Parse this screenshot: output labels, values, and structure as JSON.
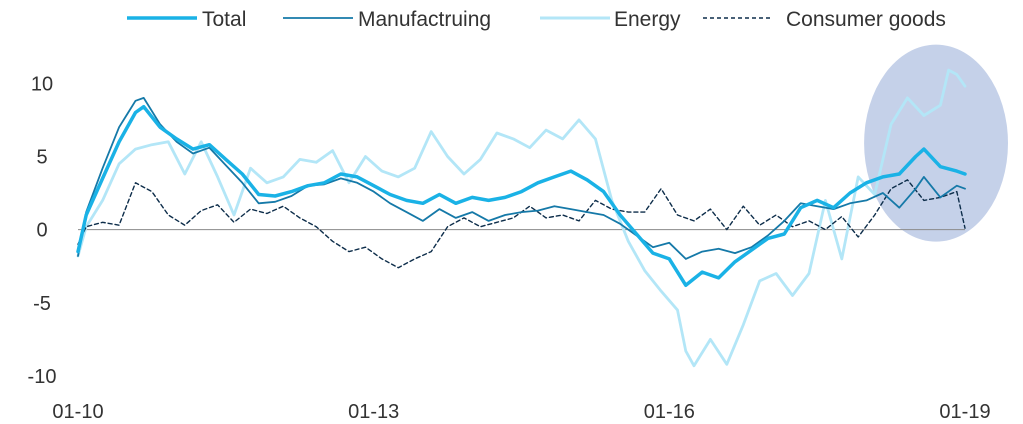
{
  "chart_data": {
    "type": "line",
    "title": "",
    "xlabel": "",
    "ylabel": "",
    "x_ticks": [
      "01-10",
      "01-13",
      "01-16",
      "01-19"
    ],
    "x_range": [
      "2010-01",
      "2019-01"
    ],
    "ylim": [
      -10,
      12
    ],
    "y_ticks": [
      10,
      5,
      0,
      -5,
      -10
    ],
    "y_tick_labels": [
      "10",
      "5",
      "0",
      "-5",
      "-10"
    ],
    "grid": false,
    "zero_line": true,
    "legend_position": "top",
    "highlight": {
      "shape": "ellipse",
      "x_range": [
        "2018-04",
        "2019-01"
      ],
      "y_range": [
        0,
        11
      ],
      "color": "#9fb3da"
    },
    "series": [
      {
        "name": "Total",
        "color": "#1ab2e6",
        "style": "bold",
        "points": [
          [
            "2010-01",
            -1.5
          ],
          [
            "2010-02",
            1.0
          ],
          [
            "2010-04",
            3.5
          ],
          [
            "2010-06",
            6.0
          ],
          [
            "2010-08",
            8.0
          ],
          [
            "2010-09",
            8.4
          ],
          [
            "2010-11",
            7.0
          ],
          [
            "2011-01",
            6.2
          ],
          [
            "2011-03",
            5.5
          ],
          [
            "2011-05",
            5.8
          ],
          [
            "2011-07",
            4.8
          ],
          [
            "2011-09",
            3.8
          ],
          [
            "2011-11",
            2.4
          ],
          [
            "2012-01",
            2.3
          ],
          [
            "2012-03",
            2.6
          ],
          [
            "2012-05",
            3.0
          ],
          [
            "2012-07",
            3.2
          ],
          [
            "2012-09",
            3.8
          ],
          [
            "2012-11",
            3.6
          ],
          [
            "2013-01",
            3.0
          ],
          [
            "2013-03",
            2.4
          ],
          [
            "2013-05",
            2.0
          ],
          [
            "2013-07",
            1.8
          ],
          [
            "2013-09",
            2.4
          ],
          [
            "2013-11",
            1.8
          ],
          [
            "2014-01",
            2.2
          ],
          [
            "2014-03",
            2.0
          ],
          [
            "2014-05",
            2.2
          ],
          [
            "2014-07",
            2.6
          ],
          [
            "2014-09",
            3.2
          ],
          [
            "2014-11",
            3.6
          ],
          [
            "2015-01",
            4.0
          ],
          [
            "2015-03",
            3.4
          ],
          [
            "2015-05",
            2.6
          ],
          [
            "2015-07",
            1.0
          ],
          [
            "2015-09",
            -0.3
          ],
          [
            "2015-11",
            -1.6
          ],
          [
            "2016-01",
            -2.0
          ],
          [
            "2016-03",
            -3.8
          ],
          [
            "2016-05",
            -2.9
          ],
          [
            "2016-07",
            -3.3
          ],
          [
            "2016-09",
            -2.2
          ],
          [
            "2016-11",
            -1.4
          ],
          [
            "2017-01",
            -0.6
          ],
          [
            "2017-03",
            -0.3
          ],
          [
            "2017-05",
            1.5
          ],
          [
            "2017-07",
            2.0
          ],
          [
            "2017-09",
            1.5
          ],
          [
            "2017-11",
            2.5
          ],
          [
            "2018-01",
            3.2
          ],
          [
            "2018-03",
            3.6
          ],
          [
            "2018-05",
            3.8
          ],
          [
            "2018-07",
            5.0
          ],
          [
            "2018-08",
            5.5
          ],
          [
            "2018-10",
            4.3
          ],
          [
            "2018-12",
            4.0
          ],
          [
            "2019-01",
            3.8
          ]
        ]
      },
      {
        "name": "Manufactruing",
        "color": "#1579a8",
        "style": "solid",
        "points": [
          [
            "2010-01",
            -1.8
          ],
          [
            "2010-02",
            1.2
          ],
          [
            "2010-04",
            4.2
          ],
          [
            "2010-06",
            7.0
          ],
          [
            "2010-08",
            8.8
          ],
          [
            "2010-09",
            9.0
          ],
          [
            "2010-11",
            7.2
          ],
          [
            "2011-01",
            6.0
          ],
          [
            "2011-03",
            5.2
          ],
          [
            "2011-05",
            5.6
          ],
          [
            "2011-07",
            4.4
          ],
          [
            "2011-09",
            3.2
          ],
          [
            "2011-11",
            1.8
          ],
          [
            "2012-01",
            1.9
          ],
          [
            "2012-03",
            2.3
          ],
          [
            "2012-05",
            3.0
          ],
          [
            "2012-07",
            3.1
          ],
          [
            "2012-09",
            3.5
          ],
          [
            "2012-11",
            3.2
          ],
          [
            "2013-01",
            2.6
          ],
          [
            "2013-03",
            1.8
          ],
          [
            "2013-05",
            1.2
          ],
          [
            "2013-07",
            0.6
          ],
          [
            "2013-09",
            1.4
          ],
          [
            "2013-11",
            0.8
          ],
          [
            "2014-01",
            1.2
          ],
          [
            "2014-03",
            0.6
          ],
          [
            "2014-05",
            1.0
          ],
          [
            "2014-07",
            1.2
          ],
          [
            "2014-09",
            1.3
          ],
          [
            "2014-11",
            1.6
          ],
          [
            "2015-01",
            1.4
          ],
          [
            "2015-03",
            1.2
          ],
          [
            "2015-05",
            1.0
          ],
          [
            "2015-07",
            0.4
          ],
          [
            "2015-09",
            -0.4
          ],
          [
            "2015-11",
            -1.2
          ],
          [
            "2016-01",
            -0.9
          ],
          [
            "2016-03",
            -2.0
          ],
          [
            "2016-05",
            -1.5
          ],
          [
            "2016-07",
            -1.3
          ],
          [
            "2016-09",
            -1.6
          ],
          [
            "2016-11",
            -1.2
          ],
          [
            "2017-01",
            -0.4
          ],
          [
            "2017-03",
            0.6
          ],
          [
            "2017-05",
            1.8
          ],
          [
            "2017-07",
            1.6
          ],
          [
            "2017-09",
            1.4
          ],
          [
            "2017-11",
            1.8
          ],
          [
            "2018-01",
            2.0
          ],
          [
            "2018-03",
            2.5
          ],
          [
            "2018-05",
            1.5
          ],
          [
            "2018-07",
            2.8
          ],
          [
            "2018-08",
            3.6
          ],
          [
            "2018-10",
            2.2
          ],
          [
            "2018-12",
            3.0
          ],
          [
            "2019-01",
            2.8
          ]
        ]
      },
      {
        "name": "Energy",
        "color": "#b3e6f7",
        "style": "solid",
        "points": [
          [
            "2010-01",
            -1.8
          ],
          [
            "2010-02",
            0.2
          ],
          [
            "2010-04",
            2.0
          ],
          [
            "2010-06",
            4.5
          ],
          [
            "2010-08",
            5.5
          ],
          [
            "2010-10",
            5.8
          ],
          [
            "2010-12",
            6.0
          ],
          [
            "2011-02",
            3.8
          ],
          [
            "2011-04",
            6.0
          ],
          [
            "2011-06",
            3.6
          ],
          [
            "2011-08",
            1.0
          ],
          [
            "2011-10",
            4.2
          ],
          [
            "2011-12",
            3.2
          ],
          [
            "2012-02",
            3.6
          ],
          [
            "2012-04",
            4.8
          ],
          [
            "2012-06",
            4.6
          ],
          [
            "2012-08",
            5.4
          ],
          [
            "2012-10",
            3.2
          ],
          [
            "2012-12",
            5.0
          ],
          [
            "2013-02",
            4.0
          ],
          [
            "2013-04",
            3.6
          ],
          [
            "2013-06",
            4.2
          ],
          [
            "2013-08",
            6.7
          ],
          [
            "2013-10",
            5.0
          ],
          [
            "2013-12",
            3.8
          ],
          [
            "2014-02",
            4.8
          ],
          [
            "2014-04",
            6.6
          ],
          [
            "2014-06",
            6.2
          ],
          [
            "2014-08",
            5.6
          ],
          [
            "2014-10",
            6.8
          ],
          [
            "2014-12",
            6.2
          ],
          [
            "2015-02",
            7.5
          ],
          [
            "2015-04",
            6.2
          ],
          [
            "2015-06",
            2.0
          ],
          [
            "2015-08",
            -0.8
          ],
          [
            "2015-10",
            -2.8
          ],
          [
            "2015-12",
            -4.2
          ],
          [
            "2016-02",
            -5.5
          ],
          [
            "2016-03",
            -8.3
          ],
          [
            "2016-04",
            -9.3
          ],
          [
            "2016-06",
            -7.5
          ],
          [
            "2016-08",
            -9.2
          ],
          [
            "2016-10",
            -6.5
          ],
          [
            "2016-12",
            -3.5
          ],
          [
            "2017-02",
            -3.0
          ],
          [
            "2017-04",
            -4.5
          ],
          [
            "2017-06",
            -3.0
          ],
          [
            "2017-08",
            2.0
          ],
          [
            "2017-10",
            -2.0
          ],
          [
            "2017-12",
            3.6
          ],
          [
            "2018-02",
            2.4
          ],
          [
            "2018-04",
            7.2
          ],
          [
            "2018-06",
            9.0
          ],
          [
            "2018-08",
            7.8
          ],
          [
            "2018-10",
            8.5
          ],
          [
            "2018-11",
            10.9
          ],
          [
            "2018-12",
            10.6
          ],
          [
            "2019-01",
            9.8
          ]
        ]
      },
      {
        "name": "Consumer goods",
        "color": "#0d2d4a",
        "style": "dashed",
        "points": [
          [
            "2010-01",
            -1.0
          ],
          [
            "2010-02",
            0.2
          ],
          [
            "2010-04",
            0.5
          ],
          [
            "2010-06",
            0.3
          ],
          [
            "2010-08",
            3.2
          ],
          [
            "2010-10",
            2.6
          ],
          [
            "2010-12",
            1.0
          ],
          [
            "2011-02",
            0.3
          ],
          [
            "2011-04",
            1.3
          ],
          [
            "2011-06",
            1.7
          ],
          [
            "2011-08",
            0.5
          ],
          [
            "2011-10",
            1.4
          ],
          [
            "2011-12",
            1.1
          ],
          [
            "2012-02",
            1.6
          ],
          [
            "2012-04",
            0.8
          ],
          [
            "2012-06",
            0.2
          ],
          [
            "2012-08",
            -0.8
          ],
          [
            "2012-10",
            -1.5
          ],
          [
            "2012-12",
            -1.2
          ],
          [
            "2013-02",
            -2.0
          ],
          [
            "2013-04",
            -2.6
          ],
          [
            "2013-06",
            -2.0
          ],
          [
            "2013-08",
            -1.5
          ],
          [
            "2013-10",
            0.2
          ],
          [
            "2013-12",
            0.8
          ],
          [
            "2014-02",
            0.2
          ],
          [
            "2014-04",
            0.5
          ],
          [
            "2014-06",
            0.8
          ],
          [
            "2014-08",
            1.6
          ],
          [
            "2014-10",
            0.8
          ],
          [
            "2014-12",
            1.0
          ],
          [
            "2015-02",
            0.6
          ],
          [
            "2015-04",
            2.0
          ],
          [
            "2015-06",
            1.4
          ],
          [
            "2015-08",
            1.2
          ],
          [
            "2015-10",
            1.2
          ],
          [
            "2015-12",
            2.8
          ],
          [
            "2016-02",
            1.0
          ],
          [
            "2016-04",
            0.6
          ],
          [
            "2016-06",
            1.4
          ],
          [
            "2016-08",
            0.0
          ],
          [
            "2016-10",
            1.6
          ],
          [
            "2016-12",
            0.3
          ],
          [
            "2017-02",
            1.0
          ],
          [
            "2017-04",
            0.2
          ],
          [
            "2017-06",
            0.6
          ],
          [
            "2017-08",
            0.0
          ],
          [
            "2017-10",
            0.9
          ],
          [
            "2017-12",
            -0.5
          ],
          [
            "2018-02",
            1.0
          ],
          [
            "2018-04",
            2.8
          ],
          [
            "2018-06",
            3.4
          ],
          [
            "2018-08",
            2.0
          ],
          [
            "2018-10",
            2.2
          ],
          [
            "2018-12",
            2.6
          ],
          [
            "2019-01",
            0.1
          ]
        ]
      }
    ]
  }
}
